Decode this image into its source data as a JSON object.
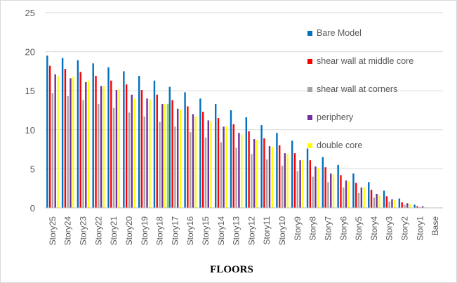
{
  "chart_data": {
    "type": "bar",
    "title": "",
    "xlabel": "FLOORS",
    "ylabel": "",
    "ylim": [
      0,
      25
    ],
    "yticks": [
      0,
      5,
      10,
      15,
      20,
      25
    ],
    "grid": "horizontal",
    "legend_position": "right",
    "categories": [
      "Story25",
      "Story24",
      "Story23",
      "Story22",
      "Story21",
      "Story20",
      "Story19",
      "Story18",
      "Story17",
      "Story16",
      "Story15",
      "Story14",
      "Story13",
      "Story12",
      "Story11",
      "Story10",
      "Story9",
      "Story8",
      "Story7",
      "Story6",
      "Story5",
      "Story4",
      "Story3",
      "Story2",
      "Story1",
      "Base"
    ],
    "series": [
      {
        "name": "Bare Model",
        "color": "#0070c0",
        "values": [
          19.5,
          19.2,
          18.9,
          18.5,
          18.0,
          17.5,
          16.9,
          16.3,
          15.5,
          14.8,
          14.0,
          13.3,
          12.5,
          11.6,
          10.6,
          9.6,
          8.6,
          7.6,
          6.5,
          5.5,
          4.4,
          3.3,
          2.2,
          1.2,
          0.4,
          0
        ]
      },
      {
        "name": "shear wall at middle core",
        "color": "#ff0000",
        "values": [
          18.2,
          17.8,
          17.4,
          16.9,
          16.3,
          15.8,
          15.1,
          14.5,
          13.8,
          13.0,
          12.3,
          11.5,
          10.7,
          9.8,
          8.9,
          8.0,
          7.0,
          6.1,
          5.2,
          4.2,
          3.2,
          2.3,
          1.5,
          0.7,
          0.2,
          0
        ]
      },
      {
        "name": "shear wall at corners",
        "color": "#a5a5a5",
        "values": [
          14.7,
          14.3,
          13.8,
          13.3,
          12.8,
          12.2,
          11.7,
          11.0,
          10.4,
          9.7,
          9.0,
          8.4,
          7.7,
          6.9,
          6.2,
          5.4,
          4.7,
          4.0,
          3.3,
          2.6,
          1.9,
          1.3,
          0.8,
          0.4,
          0.1,
          0
        ]
      },
      {
        "name": "periphery",
        "color": "#7030a0",
        "values": [
          17.1,
          16.6,
          16.1,
          15.6,
          15.1,
          14.5,
          14.0,
          13.3,
          12.7,
          12.0,
          11.2,
          10.4,
          9.6,
          8.8,
          7.9,
          7.0,
          6.1,
          5.3,
          4.4,
          3.5,
          2.6,
          1.8,
          1.1,
          0.6,
          0.2,
          0
        ]
      },
      {
        "name": "double core",
        "color": "#ffff00",
        "values": [
          16.9,
          16.8,
          16.3,
          15.6,
          15.2,
          14.0,
          13.9,
          13.3,
          12.6,
          11.7,
          11.1,
          10.4,
          9.4,
          8.7,
          7.8,
          6.9,
          6.1,
          5.1,
          4.3,
          3.4,
          2.6,
          1.6,
          1.0,
          0.5,
          0.1,
          0
        ]
      }
    ],
    "green_mark": {
      "category": "Story18",
      "value": 13.3,
      "color": "#92d050"
    }
  }
}
